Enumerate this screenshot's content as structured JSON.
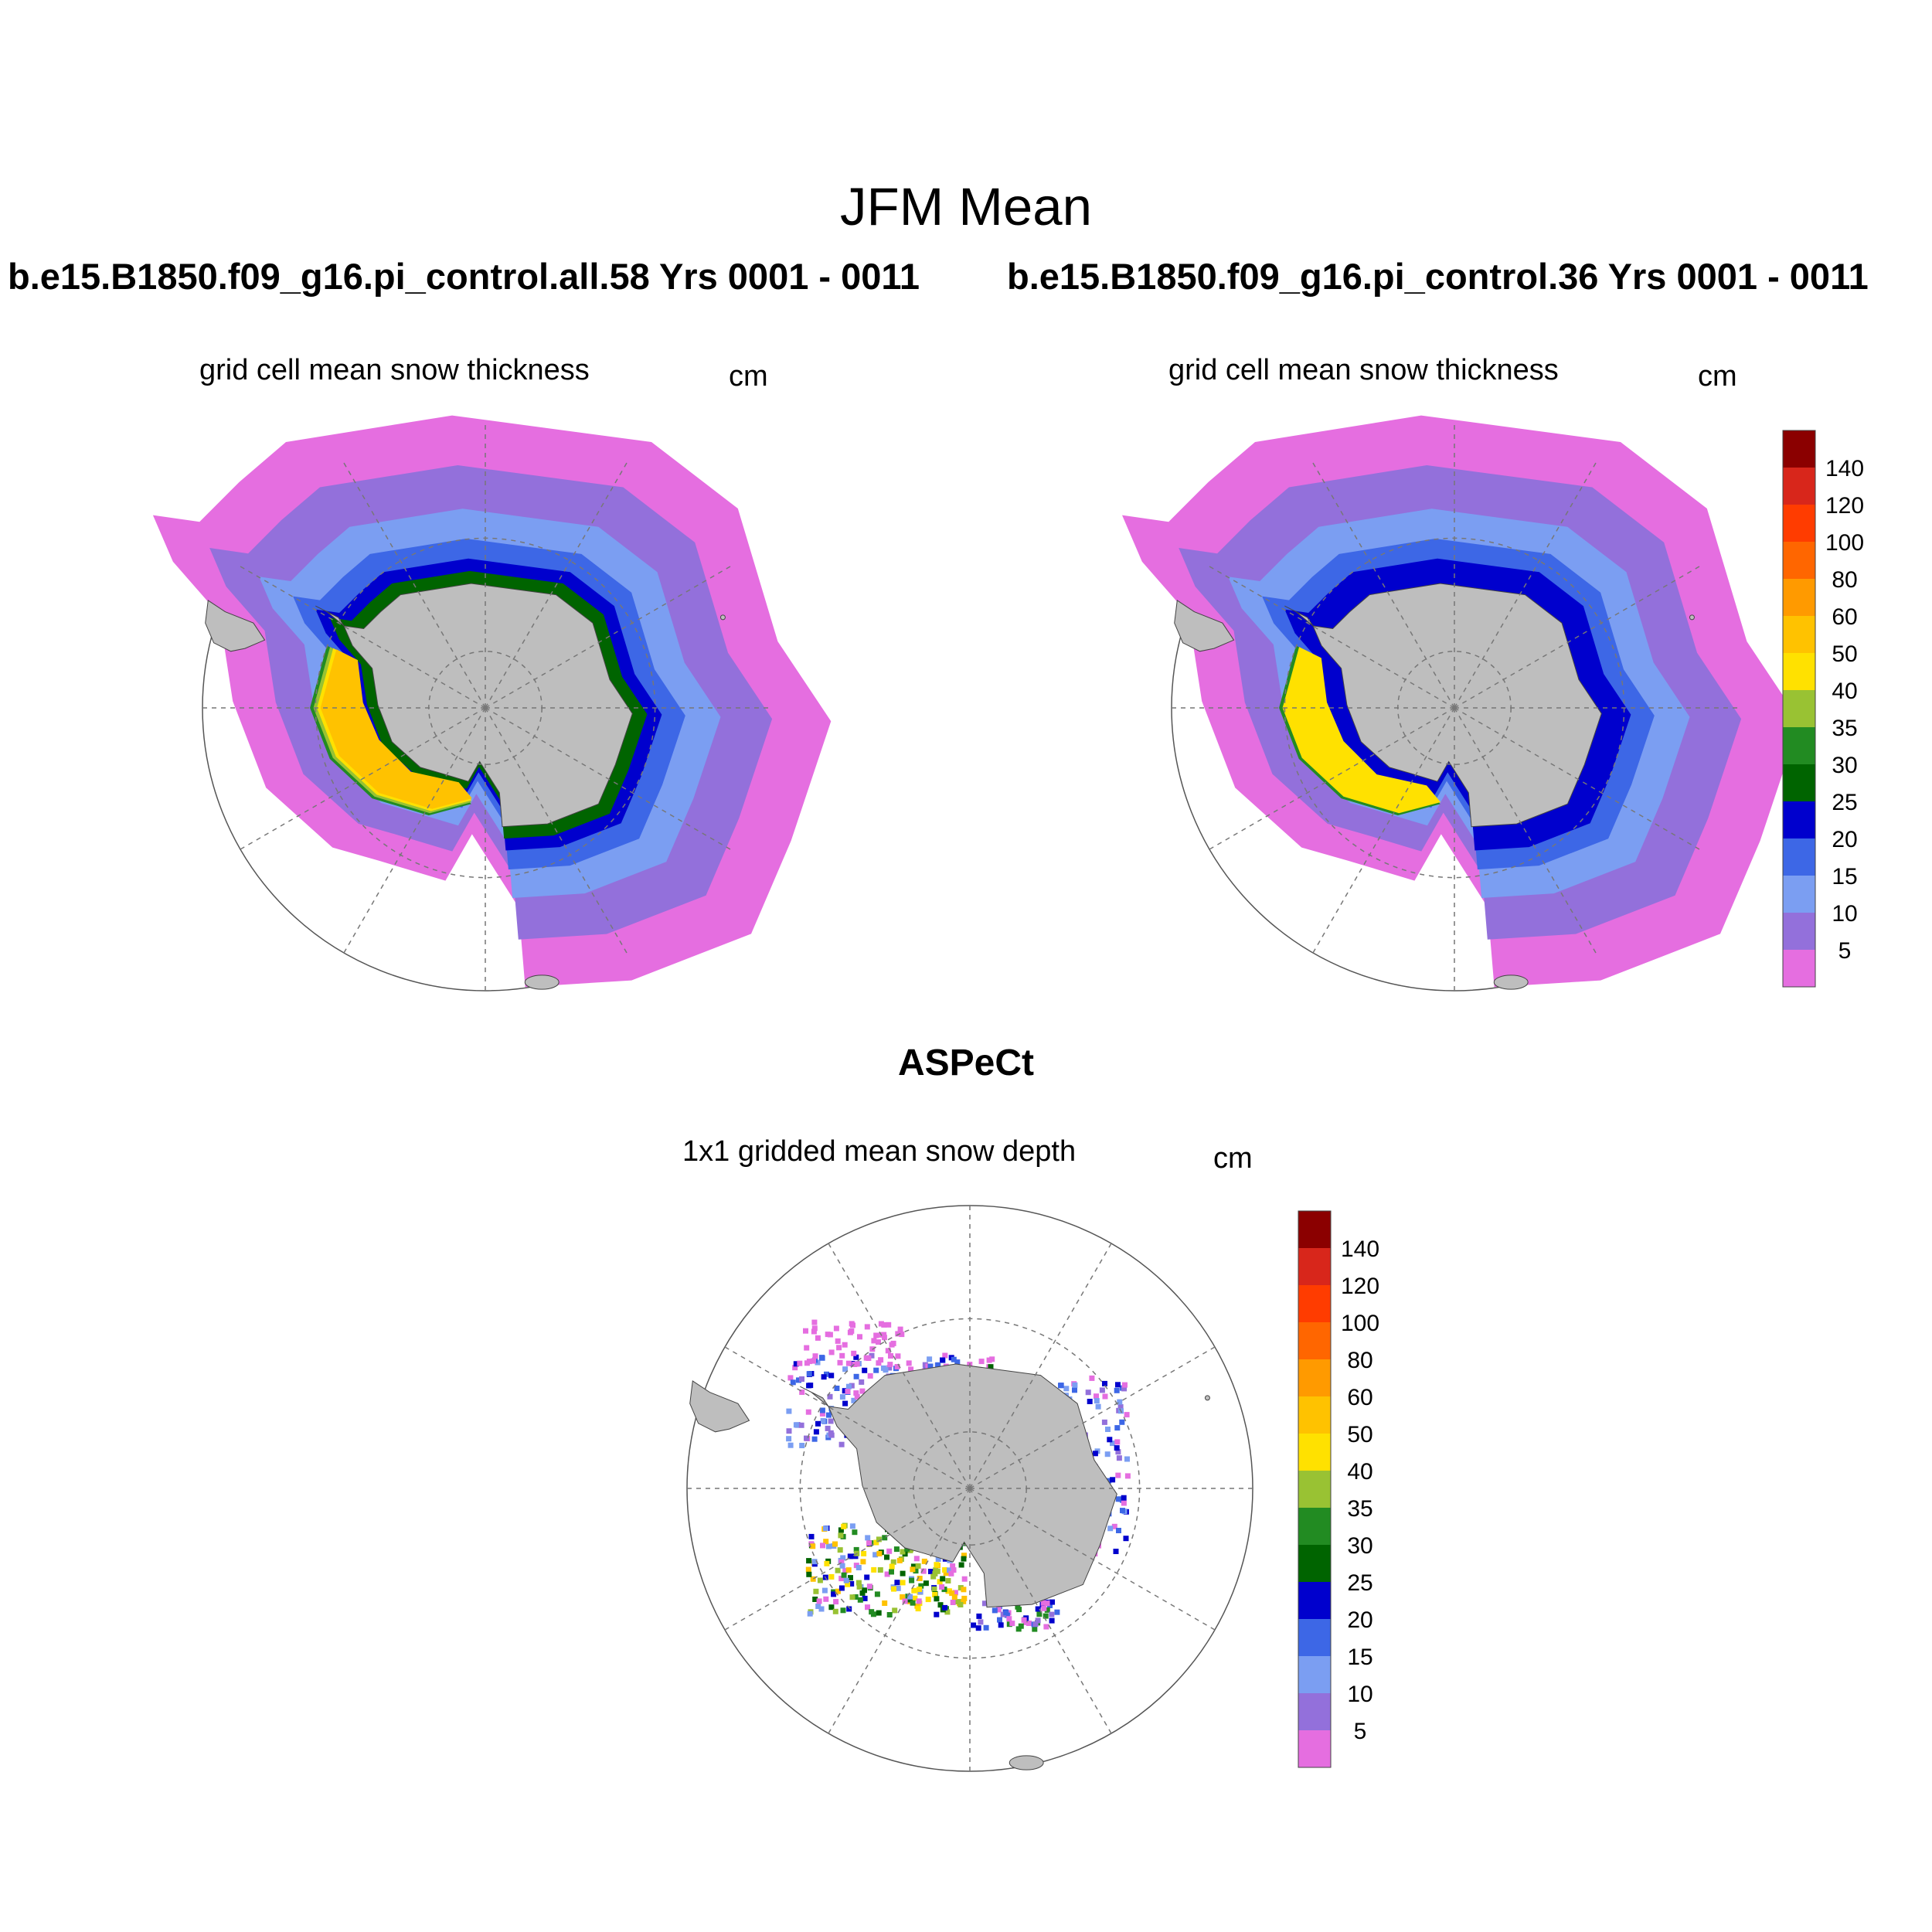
{
  "figure": {
    "title": "JFM Mean",
    "observation_title": "ASPeCt"
  },
  "panels": [
    {
      "id": "model-a",
      "case": "b.e15.B1850.f09_g16.pi_control.all.58  Yrs 0001 - 0011",
      "title": "grid cell mean snow thickness",
      "units": "cm"
    },
    {
      "id": "model-b",
      "case": "b.e15.B1850.f09_g16.pi_control.36  Yrs 0001 - 0011",
      "title": "grid cell mean snow thickness",
      "units": "cm"
    },
    {
      "id": "aspect",
      "title": "1x1 gridded mean snow depth",
      "units": "cm"
    }
  ],
  "map": {
    "projection": "south polar stereographic",
    "grid": true,
    "land_color": "#bebebe"
  },
  "colorbar": {
    "labels": [
      "140",
      "120",
      "100",
      "80",
      "60",
      "50",
      "40",
      "35",
      "30",
      "25",
      "20",
      "15",
      "10",
      "5"
    ],
    "colors": [
      "#8b0000",
      "#d8261b",
      "#ff3c00",
      "#ff6600",
      "#ff9a00",
      "#ffc200",
      "#ffe100",
      "#99c233",
      "#228b22",
      "#006400",
      "#0000cd",
      "#3d67e6",
      "#7b9ef2",
      "#9370db",
      "#e56ee0"
    ]
  }
}
